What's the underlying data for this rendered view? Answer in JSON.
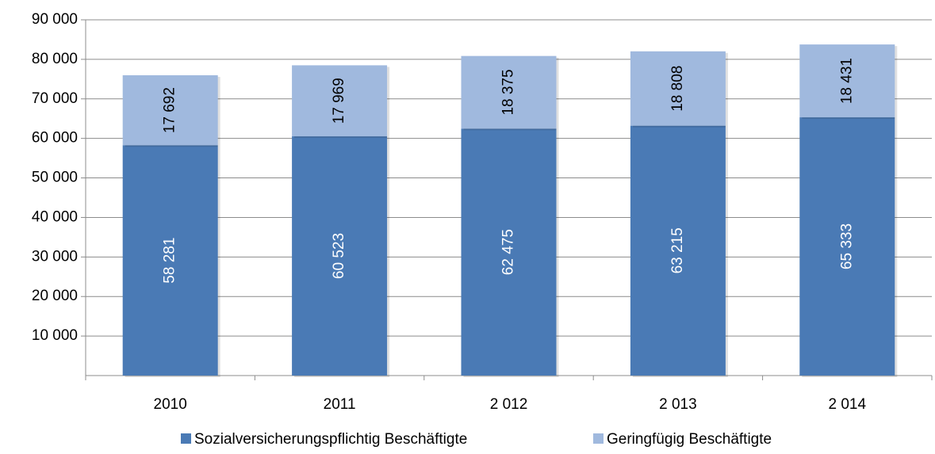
{
  "chart_data": {
    "type": "stacked_bar",
    "categories": [
      "2010",
      "2011",
      "2 012",
      "2 013",
      "2 014"
    ],
    "series": [
      {
        "name": "Sozialversicherungspflichtig Beschäftigte",
        "color": "#4a7ab5",
        "values": [
          58281,
          60523,
          62475,
          63215,
          65333
        ],
        "value_labels": [
          "58 281",
          "60 523",
          "62 475",
          "63 215",
          "65 333"
        ]
      },
      {
        "name": "Geringfügig Beschäftigte",
        "color": "#a0b9de",
        "values": [
          17692,
          17969,
          18375,
          18808,
          18431
        ],
        "value_labels": [
          "17 692",
          "17 969",
          "18 375",
          "18 808",
          "18 431"
        ]
      }
    ],
    "ylim": [
      0,
      90000
    ],
    "yticks": [
      {
        "value": 10000,
        "label": "10 000"
      },
      {
        "value": 20000,
        "label": "20 000"
      },
      {
        "value": 30000,
        "label": "30 000"
      },
      {
        "value": 40000,
        "label": "40 000"
      },
      {
        "value": 50000,
        "label": "50 000"
      },
      {
        "value": 60000,
        "label": "60 000"
      },
      {
        "value": 70000,
        "label": "70 000"
      },
      {
        "value": 80000,
        "label": "80 000"
      },
      {
        "value": 90000,
        "label": "90 000"
      }
    ],
    "grid": true
  }
}
